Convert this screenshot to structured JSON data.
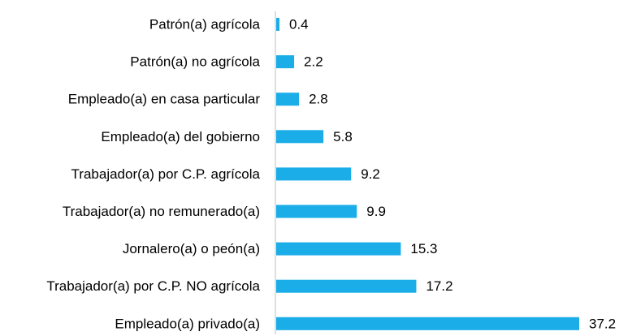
{
  "chart_data": {
    "type": "hbar",
    "categories": [
      "Patrón(a) agrícola",
      "Patrón(a) no agrícola",
      "Empleado(a) en casa particular",
      "Empleado(a) del gobierno",
      "Trabajador(a) por C.P. agrícola",
      "Trabajador(a) no remunerado(a)",
      "Jornalero(a) o peón(a)",
      "Trabajador(a) por C.P. NO agrícola",
      "Empleado(a) privado(a)"
    ],
    "values": [
      0.4,
      2.2,
      2.8,
      5.8,
      9.2,
      9.9,
      15.3,
      17.2,
      37.2
    ],
    "color": "#1aade8"
  }
}
